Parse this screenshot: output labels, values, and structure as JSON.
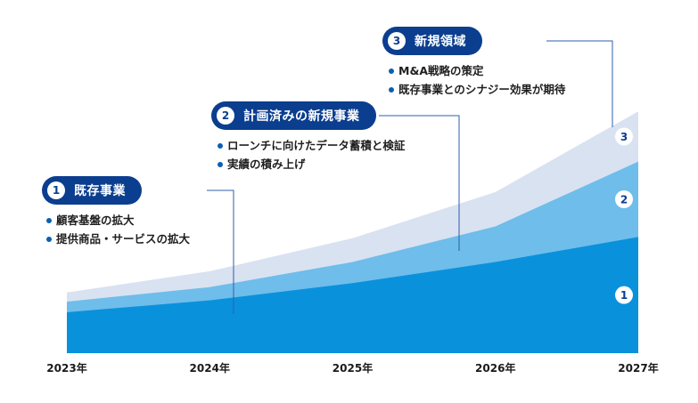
{
  "chart_data": {
    "type": "area",
    "x": [
      "2023年",
      "2024年",
      "2025年",
      "2026年",
      "2027年"
    ],
    "ylim": [
      0,
      100
    ],
    "grid": false,
    "legend": "none",
    "colors": {
      "layer1": "#0a91dc",
      "layer2": "#6fbdea",
      "layer3": "#d9e2f1",
      "pill": "#0b3e8f",
      "connector": "#2e5fae"
    },
    "series": [
      {
        "label": "1",
        "values": [
          15.5,
          20,
          26.5,
          34.5,
          44
        ]
      },
      {
        "label": "2",
        "values": [
          4,
          5,
          8,
          13.5,
          28.5
        ]
      },
      {
        "label": "3",
        "values": [
          3.5,
          6,
          9,
          13,
          19
        ]
      }
    ]
  },
  "callouts": [
    {
      "num": "1",
      "title": "既存事業",
      "bullets": [
        "顧客基盤の拡大",
        "提供商品・サービスの拡大"
      ]
    },
    {
      "num": "2",
      "title": "計画済みの新規事業",
      "bullets": [
        "ローンチに向けたデータ蓄積と検証",
        "実績の積み上げ"
      ]
    },
    {
      "num": "3",
      "title": "新規領域",
      "bullets": [
        "M&A戦略の策定",
        "既存事業とのシナジー効果が期待"
      ]
    }
  ]
}
